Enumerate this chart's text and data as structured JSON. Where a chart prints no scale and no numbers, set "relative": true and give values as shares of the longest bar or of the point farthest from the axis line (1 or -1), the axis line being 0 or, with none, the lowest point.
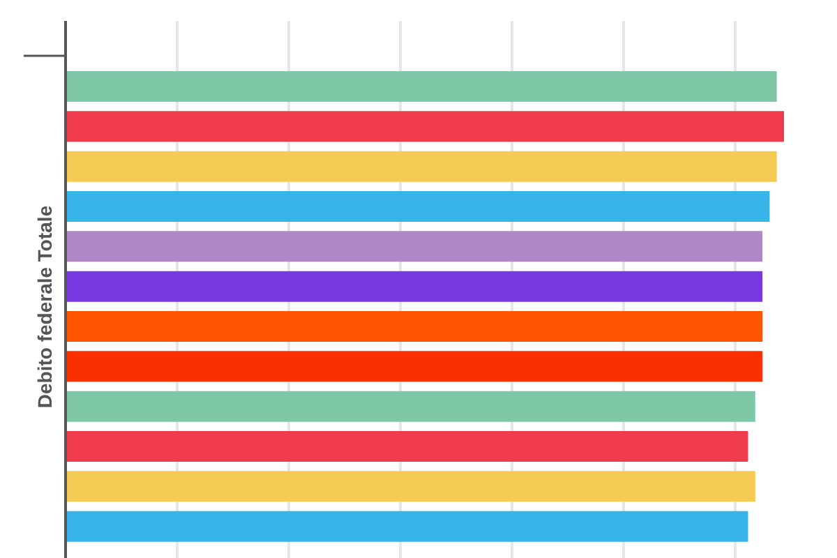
{
  "chart_data": {
    "type": "bar",
    "orientation": "horizontal",
    "relative": true,
    "ylabel": "Debito federale Totale",
    "categories": [
      null,
      null,
      null,
      null,
      null,
      null,
      null,
      null,
      null,
      null,
      null,
      null
    ],
    "values": [
      0.99,
      1,
      0.99,
      0.98,
      0.97,
      0.97,
      0.97,
      0.97,
      0.96,
      0.95,
      0.96,
      0.95
    ],
    "colors": [
      "#7ec8a7",
      "#ef3b4b",
      "#f5cb53",
      "#37b5e9",
      "#b088c8",
      "#7838e0",
      "#ff5500",
      "#fa3000",
      "#7ec8a7",
      "#ef3b4b",
      "#f5cb53",
      "#37b5e9"
    ],
    "grid": "x"
  }
}
